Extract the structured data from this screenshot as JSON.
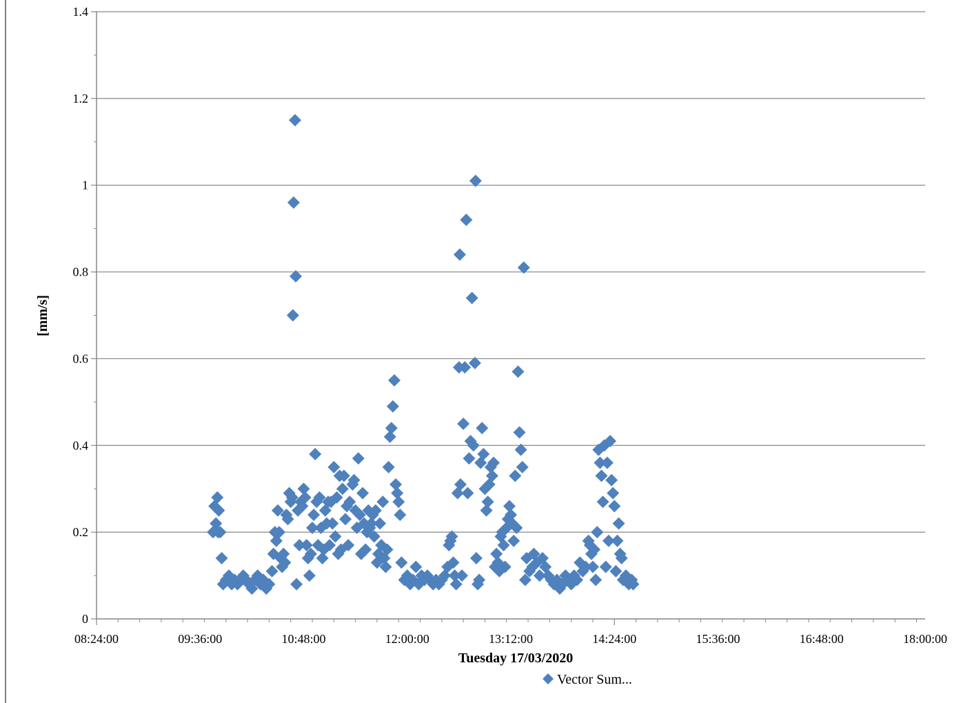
{
  "chart_data": {
    "type": "scatter",
    "title": "",
    "xlabel": "Tuesday 17/03/2020",
    "ylabel": "[mm/s]",
    "ylim": [
      0,
      1.4
    ],
    "xlim": [
      "08:24:00",
      "18:00:00"
    ],
    "y_ticks": [
      "0",
      "0.2",
      "0.4",
      "0.6",
      "0.8",
      "1",
      "1.2",
      "1.4"
    ],
    "x_ticks": [
      "08:24:00",
      "09:36:00",
      "10:48:00",
      "12:00:00",
      "13:12:00",
      "14:24:00",
      "15:36:00",
      "16:48:00",
      "18:00:00"
    ],
    "grid": "horizontal",
    "legend_position": "bottom",
    "marker_color": "#4f81bd",
    "series": [
      {
        "name": "Vector Sum...",
        "points": [
          [
            "09:45:00",
            0.2
          ],
          [
            "09:46:00",
            0.26
          ],
          [
            "09:47:00",
            0.22
          ],
          [
            "09:48:00",
            0.28
          ],
          [
            "09:48:30",
            0.2
          ],
          [
            "09:49:00",
            0.25
          ],
          [
            "09:50:00",
            0.2
          ],
          [
            "09:51:00",
            0.14
          ],
          [
            "09:52:00",
            0.08
          ],
          [
            "09:54:00",
            0.09
          ],
          [
            "09:56:00",
            0.1
          ],
          [
            "09:58:00",
            0.08
          ],
          [
            "10:00:00",
            0.09
          ],
          [
            "10:02:00",
            0.08
          ],
          [
            "10:04:00",
            0.09
          ],
          [
            "10:06:00",
            0.1
          ],
          [
            "10:08:00",
            0.09
          ],
          [
            "10:10:00",
            0.08
          ],
          [
            "10:12:00",
            0.07
          ],
          [
            "10:14:00",
            0.09
          ],
          [
            "10:16:00",
            0.1
          ],
          [
            "10:18:00",
            0.08
          ],
          [
            "10:20:00",
            0.09
          ],
          [
            "10:22:00",
            0.07
          ],
          [
            "10:24:00",
            0.08
          ],
          [
            "10:26:00",
            0.11
          ],
          [
            "10:27:00",
            0.15
          ],
          [
            "10:28:00",
            0.2
          ],
          [
            "10:29:00",
            0.18
          ],
          [
            "10:30:00",
            0.25
          ],
          [
            "10:31:00",
            0.2
          ],
          [
            "10:32:00",
            0.14
          ],
          [
            "10:33:00",
            0.12
          ],
          [
            "10:34:00",
            0.15
          ],
          [
            "10:35:00",
            0.13
          ],
          [
            "10:36:00",
            0.24
          ],
          [
            "10:37:00",
            0.23
          ],
          [
            "10:38:00",
            0.29
          ],
          [
            "10:39:00",
            0.27
          ],
          [
            "10:40:00",
            0.28
          ],
          [
            "10:40:30",
            0.7
          ],
          [
            "10:41:00",
            0.96
          ],
          [
            "10:42:00",
            1.15
          ],
          [
            "10:42:30",
            0.79
          ],
          [
            "10:43:00",
            0.08
          ],
          [
            "10:44:00",
            0.25
          ],
          [
            "10:45:00",
            0.17
          ],
          [
            "10:46:00",
            0.27
          ],
          [
            "10:47:00",
            0.26
          ],
          [
            "10:48:00",
            0.3
          ],
          [
            "10:49:00",
            0.28
          ],
          [
            "10:50:00",
            0.17
          ],
          [
            "10:51:00",
            0.14
          ],
          [
            "10:52:00",
            0.1
          ],
          [
            "10:53:00",
            0.15
          ],
          [
            "10:54:00",
            0.21
          ],
          [
            "10:55:00",
            0.24
          ],
          [
            "10:56:00",
            0.38
          ],
          [
            "10:57:00",
            0.27
          ],
          [
            "10:58:00",
            0.17
          ],
          [
            "10:59:00",
            0.28
          ],
          [
            "11:00:00",
            0.21
          ],
          [
            "11:01:00",
            0.14
          ],
          [
            "11:02:00",
            0.16
          ],
          [
            "11:03:00",
            0.25
          ],
          [
            "11:04:00",
            0.22
          ],
          [
            "11:05:00",
            0.27
          ],
          [
            "11:06:00",
            0.17
          ],
          [
            "11:07:00",
            0.27
          ],
          [
            "11:08:00",
            0.22
          ],
          [
            "11:09:00",
            0.35
          ],
          [
            "11:10:00",
            0.19
          ],
          [
            "11:11:00",
            0.28
          ],
          [
            "11:12:00",
            0.15
          ],
          [
            "11:13:00",
            0.33
          ],
          [
            "11:14:00",
            0.16
          ],
          [
            "11:15:00",
            0.3
          ],
          [
            "11:16:00",
            0.33
          ],
          [
            "11:17:00",
            0.23
          ],
          [
            "11:18:00",
            0.26
          ],
          [
            "11:19:00",
            0.17
          ],
          [
            "11:20:00",
            0.27
          ],
          [
            "11:22:00",
            0.31
          ],
          [
            "11:23:00",
            0.32
          ],
          [
            "11:24:00",
            0.25
          ],
          [
            "11:25:00",
            0.21
          ],
          [
            "11:26:00",
            0.37
          ],
          [
            "11:27:00",
            0.24
          ],
          [
            "11:28:00",
            0.15
          ],
          [
            "11:29:00",
            0.29
          ],
          [
            "11:30:00",
            0.22
          ],
          [
            "11:31:00",
            0.16
          ],
          [
            "11:32:00",
            0.2
          ],
          [
            "11:33:00",
            0.25
          ],
          [
            "11:34:00",
            0.21
          ],
          [
            "11:35:00",
            0.22
          ],
          [
            "11:36:00",
            0.24
          ],
          [
            "11:37:00",
            0.19
          ],
          [
            "11:38:00",
            0.25
          ],
          [
            "11:39:00",
            0.13
          ],
          [
            "11:40:00",
            0.15
          ],
          [
            "11:41:00",
            0.22
          ],
          [
            "11:42:00",
            0.17
          ],
          [
            "11:43:00",
            0.27
          ],
          [
            "11:44:00",
            0.14
          ],
          [
            "11:45:00",
            0.12
          ],
          [
            "11:46:00",
            0.16
          ],
          [
            "11:47:00",
            0.35
          ],
          [
            "11:48:00",
            0.42
          ],
          [
            "11:49:00",
            0.44
          ],
          [
            "11:50:00",
            0.49
          ],
          [
            "11:51:00",
            0.55
          ],
          [
            "11:52:00",
            0.31
          ],
          [
            "11:53:00",
            0.29
          ],
          [
            "11:54:00",
            0.27
          ],
          [
            "11:55:00",
            0.24
          ],
          [
            "11:56:00",
            0.13
          ],
          [
            "11:58:00",
            0.09
          ],
          [
            "12:00:00",
            0.1
          ],
          [
            "12:02:00",
            0.08
          ],
          [
            "12:04:00",
            0.09
          ],
          [
            "12:06:00",
            0.12
          ],
          [
            "12:08:00",
            0.08
          ],
          [
            "12:10:00",
            0.1
          ],
          [
            "12:12:00",
            0.09
          ],
          [
            "12:14:00",
            0.1
          ],
          [
            "12:16:00",
            0.09
          ],
          [
            "12:18:00",
            0.08
          ],
          [
            "12:20:00",
            0.09
          ],
          [
            "12:22:00",
            0.08
          ],
          [
            "12:24:00",
            0.09
          ],
          [
            "12:26:00",
            0.1
          ],
          [
            "12:28:00",
            0.12
          ],
          [
            "12:29:00",
            0.17
          ],
          [
            "12:30:00",
            0.18
          ],
          [
            "12:31:00",
            0.19
          ],
          [
            "12:32:00",
            0.13
          ],
          [
            "12:33:00",
            0.1
          ],
          [
            "12:34:00",
            0.08
          ],
          [
            "12:35:00",
            0.29
          ],
          [
            "12:36:00",
            0.58
          ],
          [
            "12:36:30",
            0.84
          ],
          [
            "12:37:00",
            0.31
          ],
          [
            "12:38:00",
            0.1
          ],
          [
            "12:39:00",
            0.45
          ],
          [
            "12:40:00",
            0.58
          ],
          [
            "12:41:00",
            0.92
          ],
          [
            "12:42:00",
            0.29
          ],
          [
            "12:43:00",
            0.37
          ],
          [
            "12:44:00",
            0.41
          ],
          [
            "12:45:00",
            0.74
          ],
          [
            "12:46:00",
            0.4
          ],
          [
            "12:47:00",
            0.59
          ],
          [
            "12:47:30",
            1.01
          ],
          [
            "12:48:00",
            0.14
          ],
          [
            "12:49:00",
            0.08
          ],
          [
            "12:50:00",
            0.09
          ],
          [
            "12:51:00",
            0.36
          ],
          [
            "12:52:00",
            0.44
          ],
          [
            "12:53:00",
            0.38
          ],
          [
            "12:54:00",
            0.3
          ],
          [
            "12:55:00",
            0.25
          ],
          [
            "12:56:00",
            0.27
          ],
          [
            "12:57:00",
            0.31
          ],
          [
            "12:58:00",
            0.35
          ],
          [
            "12:59:00",
            0.33
          ],
          [
            "13:00:00",
            0.36
          ],
          [
            "13:01:00",
            0.12
          ],
          [
            "13:02:00",
            0.15
          ],
          [
            "13:03:00",
            0.13
          ],
          [
            "13:04:00",
            0.11
          ],
          [
            "13:05:00",
            0.19
          ],
          [
            "13:06:00",
            0.2
          ],
          [
            "13:07:00",
            0.17
          ],
          [
            "13:08:00",
            0.12
          ],
          [
            "13:09:00",
            0.21
          ],
          [
            "13:10:00",
            0.23
          ],
          [
            "13:11:00",
            0.26
          ],
          [
            "13:12:00",
            0.24
          ],
          [
            "13:13:00",
            0.22
          ],
          [
            "13:14:00",
            0.18
          ],
          [
            "13:15:00",
            0.33
          ],
          [
            "13:16:00",
            0.21
          ],
          [
            "13:17:00",
            0.57
          ],
          [
            "13:18:00",
            0.43
          ],
          [
            "13:19:00",
            0.39
          ],
          [
            "13:20:00",
            0.35
          ],
          [
            "13:21:00",
            0.81
          ],
          [
            "13:22:00",
            0.09
          ],
          [
            "13:23:00",
            0.14
          ],
          [
            "13:25:00",
            0.11
          ],
          [
            "13:27:00",
            0.12
          ],
          [
            "13:28:00",
            0.15
          ],
          [
            "13:30:00",
            0.13
          ],
          [
            "13:32:00",
            0.1
          ],
          [
            "13:34:00",
            0.14
          ],
          [
            "13:36:00",
            0.12
          ],
          [
            "13:38:00",
            0.1
          ],
          [
            "13:40:00",
            0.09
          ],
          [
            "13:42:00",
            0.08
          ],
          [
            "13:44:00",
            0.09
          ],
          [
            "13:46:00",
            0.07
          ],
          [
            "13:48:00",
            0.08
          ],
          [
            "13:50:00",
            0.1
          ],
          [
            "13:52:00",
            0.09
          ],
          [
            "13:54:00",
            0.08
          ],
          [
            "13:56:00",
            0.1
          ],
          [
            "13:58:00",
            0.09
          ],
          [
            "14:00:00",
            0.13
          ],
          [
            "14:02:00",
            0.11
          ],
          [
            "14:04:00",
            0.12
          ],
          [
            "14:06:00",
            0.18
          ],
          [
            "14:07:00",
            0.17
          ],
          [
            "14:08:00",
            0.15
          ],
          [
            "14:09:00",
            0.12
          ],
          [
            "14:10:00",
            0.16
          ],
          [
            "14:11:00",
            0.09
          ],
          [
            "14:12:00",
            0.2
          ],
          [
            "14:13:00",
            0.39
          ],
          [
            "14:14:00",
            0.36
          ],
          [
            "14:15:00",
            0.33
          ],
          [
            "14:16:00",
            0.27
          ],
          [
            "14:17:00",
            0.4
          ],
          [
            "14:18:00",
            0.12
          ],
          [
            "14:19:00",
            0.36
          ],
          [
            "14:20:00",
            0.18
          ],
          [
            "14:21:00",
            0.41
          ],
          [
            "14:22:00",
            0.32
          ],
          [
            "14:23:00",
            0.29
          ],
          [
            "14:24:00",
            0.26
          ],
          [
            "14:25:00",
            0.11
          ],
          [
            "14:26:00",
            0.18
          ],
          [
            "14:27:00",
            0.22
          ],
          [
            "14:28:00",
            0.15
          ],
          [
            "14:29:00",
            0.14
          ],
          [
            "14:30:00",
            0.09
          ],
          [
            "14:32:00",
            0.1
          ],
          [
            "14:34:00",
            0.08
          ],
          [
            "14:36:00",
            0.09
          ],
          [
            "14:37:00",
            0.08
          ]
        ]
      }
    ]
  }
}
